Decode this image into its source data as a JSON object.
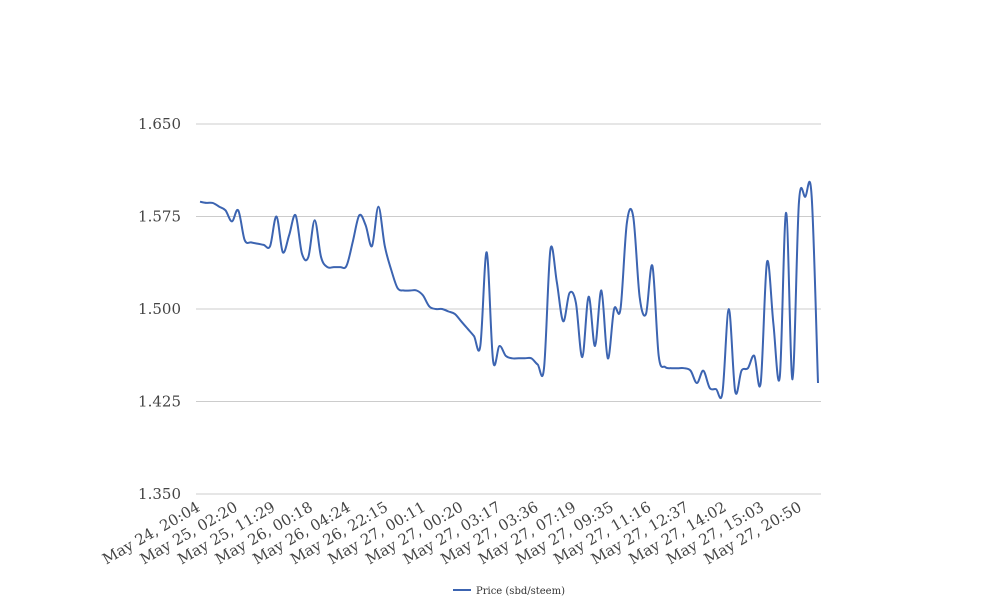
{
  "chart_data": {
    "type": "line",
    "title": "",
    "xlabel": "",
    "ylabel": "",
    "ylim": [
      1.35,
      1.65
    ],
    "yticks": [
      "1.350",
      "1.425",
      "1.500",
      "1.575",
      "1.650"
    ],
    "grid": "horizontal",
    "legend_position": "bottom",
    "x_tick_labels": [
      "May 24, 20:04",
      "May 25, 02:20",
      "May 25, 11:29",
      "May 26, 00:18",
      "May 26, 04:24",
      "May 26, 22:15",
      "May 27, 00:11",
      "May 27, 00:20",
      "May 27, 03:17",
      "May 27, 03:36",
      "May 27, 07:19",
      "May 27, 09:35",
      "May 27, 11:16",
      "May 27, 12:37",
      "May 27, 14:02",
      "May 27, 15:03",
      "May 27, 20:50"
    ],
    "series": [
      {
        "name": "Price (sbd/steem)",
        "color": "#3c64b1",
        "values": [
          1.587,
          1.586,
          1.586,
          1.583,
          1.58,
          1.571,
          1.58,
          1.556,
          1.554,
          1.553,
          1.552,
          1.551,
          1.575,
          1.546,
          1.56,
          1.576,
          1.545,
          1.542,
          1.572,
          1.542,
          1.534,
          1.534,
          1.534,
          1.535,
          1.555,
          1.576,
          1.568,
          1.551,
          1.583,
          1.551,
          1.532,
          1.517,
          1.515,
          1.515,
          1.515,
          1.511,
          1.502,
          1.5,
          1.5,
          1.498,
          1.496,
          1.49,
          1.484,
          1.478,
          1.47,
          1.546,
          1.458,
          1.47,
          1.462,
          1.46,
          1.46,
          1.46,
          1.46,
          1.455,
          1.452,
          1.548,
          1.522,
          1.49,
          1.513,
          1.505,
          1.461,
          1.51,
          1.47,
          1.515,
          1.46,
          1.5,
          1.5,
          1.57,
          1.575,
          1.51,
          1.496,
          1.535,
          1.462,
          1.453,
          1.452,
          1.452,
          1.452,
          1.45,
          1.44,
          1.45,
          1.436,
          1.435,
          1.432,
          1.5,
          1.433,
          1.45,
          1.452,
          1.462,
          1.44,
          1.538,
          1.488,
          1.445,
          1.578,
          1.443,
          1.586,
          1.591,
          1.592,
          1.44
        ]
      }
    ]
  }
}
